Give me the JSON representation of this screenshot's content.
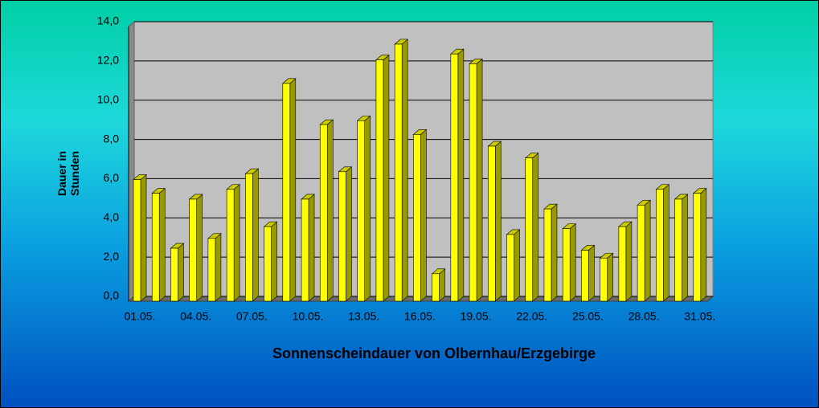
{
  "chart_data": {
    "type": "bar",
    "title": "Sonnenscheindauer von Olbernhau/Erzgebirge",
    "y_label": "Dauer in Stunden",
    "categories": [
      "01.05.",
      null,
      null,
      "04.05.",
      null,
      null,
      "07.05.",
      null,
      null,
      "10.05.",
      null,
      null,
      "13.05.",
      null,
      null,
      "16.05.",
      null,
      null,
      "19.05.",
      null,
      null,
      "22.05.",
      null,
      null,
      "25.05.",
      null,
      null,
      "28.05.",
      null,
      null,
      "31.05."
    ],
    "values": [
      6.2,
      5.5,
      2.7,
      5.2,
      3.2,
      5.7,
      6.5,
      3.8,
      11.1,
      5.2,
      9.0,
      6.6,
      9.2,
      12.3,
      13.1,
      8.5,
      1.4,
      12.6,
      12.1,
      7.9,
      3.4,
      7.3,
      4.7,
      3.7,
      2.6,
      2.2,
      3.8,
      4.9,
      5.7,
      5.2,
      5.5
    ],
    "color": "#ffff00",
    "ylim": [
      0,
      14
    ],
    "yticks": [
      {
        "value": 0,
        "label": "0,0"
      },
      {
        "value": 2,
        "label": "2,0"
      },
      {
        "value": 4,
        "label": "4,0"
      },
      {
        "value": 6,
        "label": "6,0"
      },
      {
        "value": 8,
        "label": "8,0"
      },
      {
        "value": 10,
        "label": "10,0"
      },
      {
        "value": 12,
        "label": "12,0"
      },
      {
        "value": 14,
        "label": "14,0"
      }
    ],
    "grid": true
  }
}
